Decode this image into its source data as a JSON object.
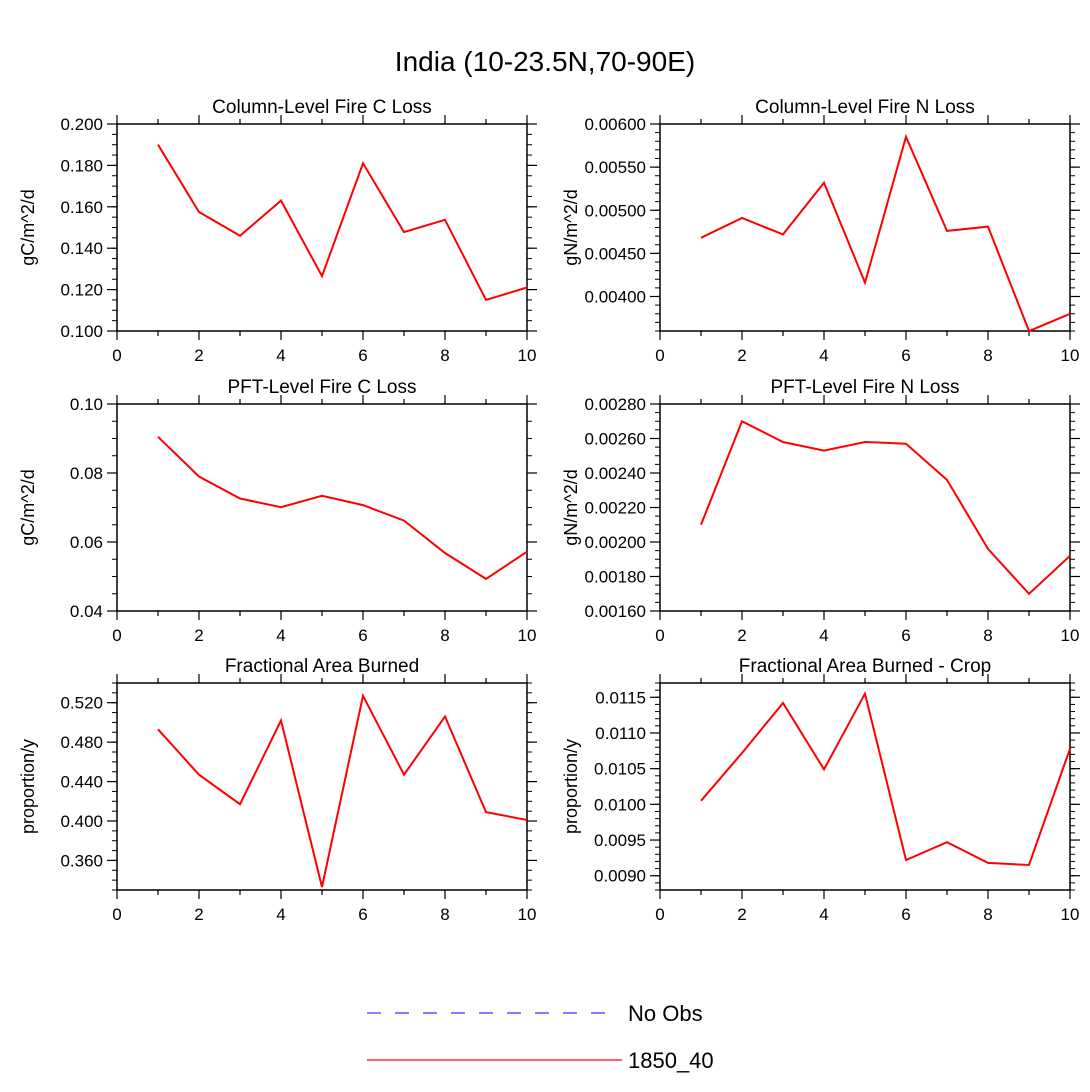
{
  "figure": {
    "title": "India (10-23.5N,70-90E)"
  },
  "legend": [
    {
      "label": "No Obs",
      "color": "#3333ff",
      "style": "dashed"
    },
    {
      "label": "1850_40",
      "color": "#ff0000",
      "style": "solid"
    }
  ],
  "chart_data": [
    {
      "type": "line",
      "title": "Column-Level Fire C Loss",
      "ylabel": "gC/m^2/d",
      "xlim": [
        0,
        10
      ],
      "ylim": [
        0.1,
        0.2
      ],
      "xticks": [
        0,
        2,
        4,
        6,
        8,
        10
      ],
      "yticks": [
        0.1,
        0.12,
        0.14,
        0.16,
        0.18,
        0.2
      ],
      "yticklabels": [
        "0.100",
        "0.120",
        "0.140",
        "0.160",
        "0.180",
        "0.200"
      ],
      "yminor": 0.005,
      "series": [
        {
          "name": "1850_40",
          "color": "#ff0000",
          "x": [
            1,
            2,
            3,
            4,
            5,
            6,
            7,
            8,
            9,
            10
          ],
          "y": [
            0.19,
            0.1575,
            0.146,
            0.163,
            0.1265,
            0.181,
            0.1478,
            0.1537,
            0.115,
            0.121
          ]
        }
      ]
    },
    {
      "type": "line",
      "title": "Column-Level Fire N Loss",
      "ylabel": "gN/m^2/d",
      "xlim": [
        0,
        10
      ],
      "ylim": [
        0.0036,
        0.006
      ],
      "xticks": [
        0,
        2,
        4,
        6,
        8,
        10
      ],
      "yticks": [
        0.004,
        0.0045,
        0.005,
        0.0055,
        0.006
      ],
      "yticklabels": [
        "0.00400",
        "0.00450",
        "0.00500",
        "0.00550",
        "0.00600"
      ],
      "yminor": 0.0001,
      "series": [
        {
          "name": "1850_40",
          "color": "#ff0000",
          "x": [
            1,
            2,
            3,
            4,
            5,
            6,
            7,
            8,
            9,
            10
          ],
          "y": [
            0.00468,
            0.00491,
            0.00472,
            0.00532,
            0.00416,
            0.00585,
            0.00476,
            0.00481,
            0.0036,
            0.0038
          ]
        }
      ]
    },
    {
      "type": "line",
      "title": "PFT-Level Fire C Loss",
      "ylabel": "gC/m^2/d",
      "xlim": [
        0,
        10
      ],
      "ylim": [
        0.04,
        0.1
      ],
      "xticks": [
        0,
        2,
        4,
        6,
        8,
        10
      ],
      "yticks": [
        0.04,
        0.06,
        0.08,
        0.1
      ],
      "yticklabels": [
        "0.04",
        "0.06",
        "0.08",
        "0.10"
      ],
      "yminor": 0.005,
      "series": [
        {
          "name": "1850_40",
          "color": "#ff0000",
          "x": [
            1,
            2,
            3,
            4,
            5,
            6,
            7,
            8,
            9,
            10
          ],
          "y": [
            0.0905,
            0.079,
            0.0726,
            0.0701,
            0.0734,
            0.0707,
            0.0662,
            0.0568,
            0.0493,
            0.0572
          ]
        }
      ]
    },
    {
      "type": "line",
      "title": "PFT-Level Fire N Loss",
      "ylabel": "gN/m^2/d",
      "xlim": [
        0,
        10
      ],
      "ylim": [
        0.0016,
        0.0028
      ],
      "xticks": [
        0,
        2,
        4,
        6,
        8,
        10
      ],
      "yticks": [
        0.0016,
        0.0018,
        0.002,
        0.0022,
        0.0024,
        0.0026,
        0.0028
      ],
      "yticklabels": [
        "0.00160",
        "0.00180",
        "0.00200",
        "0.00220",
        "0.00240",
        "0.00260",
        "0.00280"
      ],
      "yminor": 5e-05,
      "series": [
        {
          "name": "1850_40",
          "color": "#ff0000",
          "x": [
            1,
            2,
            3,
            4,
            5,
            6,
            7,
            8,
            9,
            10
          ],
          "y": [
            0.0021,
            0.0027,
            0.00258,
            0.00253,
            0.00258,
            0.00257,
            0.00236,
            0.00196,
            0.0017,
            0.00192
          ]
        }
      ]
    },
    {
      "type": "line",
      "title": "Fractional Area Burned",
      "ylabel": "proportion/y",
      "xlim": [
        0,
        10
      ],
      "ylim": [
        0.33,
        0.54
      ],
      "xticks": [
        0,
        2,
        4,
        6,
        8,
        10
      ],
      "yticks": [
        0.36,
        0.4,
        0.44,
        0.48,
        0.52
      ],
      "yticklabels": [
        "0.360",
        "0.400",
        "0.440",
        "0.480",
        "0.520"
      ],
      "yminor": 0.01,
      "series": [
        {
          "name": "1850_40",
          "color": "#ff0000",
          "x": [
            1,
            2,
            3,
            4,
            5,
            6,
            7,
            8,
            9,
            10
          ],
          "y": [
            0.493,
            0.447,
            0.417,
            0.502,
            0.333,
            0.527,
            0.447,
            0.506,
            0.409,
            0.401
          ]
        }
      ]
    },
    {
      "type": "line",
      "title": "Fractional Area Burned - Crop",
      "ylabel": "proportion/y",
      "xlim": [
        0,
        10
      ],
      "ylim": [
        0.0088,
        0.0117
      ],
      "xticks": [
        0,
        2,
        4,
        6,
        8,
        10
      ],
      "yticks": [
        0.009,
        0.0095,
        0.01,
        0.0105,
        0.011,
        0.0115
      ],
      "yticklabels": [
        "0.0090",
        "0.0095",
        "0.0100",
        "0.0105",
        "0.0110",
        "0.0115"
      ],
      "yminor": 0.0001,
      "series": [
        {
          "name": "1850_40",
          "color": "#ff0000",
          "x": [
            1,
            2,
            3,
            4,
            5,
            6,
            7,
            8,
            9,
            10
          ],
          "y": [
            0.01005,
            0.01072,
            0.01142,
            0.01049,
            0.01155,
            0.00922,
            0.00947,
            0.00918,
            0.00915,
            0.01078
          ]
        }
      ]
    }
  ]
}
